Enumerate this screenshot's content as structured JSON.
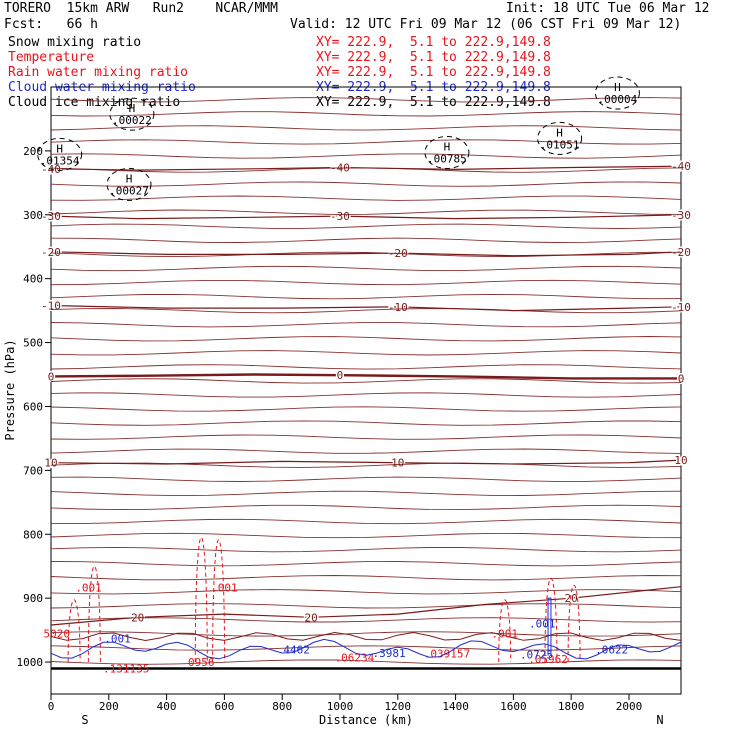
{
  "header": {
    "model": "TORERO  15km ARW   Run2    NCAR/MMM",
    "init": "Init: 18 UTC Tue 06 Mar 12",
    "fcst": "Fcst:   66 h",
    "valid": "Valid: 12 UTC Fri 09 Mar 12 (06 CST Fri 09 Mar 12)"
  },
  "fields": [
    {
      "name": "Snow mixing ratio",
      "xy": "XY= 222.9,  5.1 to 222.9,149.8",
      "color": "#000000"
    },
    {
      "name": "Temperature",
      "xy": "XY= 222.9,  5.1 to 222.9,149.8",
      "color": "#e8141c"
    },
    {
      "name": "Rain water mixing ratio",
      "xy": "XY= 222.9,  5.1 to 222.9,149.8",
      "color": "#e8141c"
    },
    {
      "name": "Cloud water mixing ratio",
      "xy": "XY= 222.9,  5.1 to 222.9,149.8",
      "color": "#1f2bd0"
    },
    {
      "name": "Cloud ice mixing ratio",
      "xy": "XY= 222.9,  5.1 to 222.9,149.8",
      "color": "#000000"
    }
  ],
  "chart_data": {
    "type": "line",
    "xlabel": "Distance (km)",
    "ylabel": "Pressure (hPa)",
    "xlim": [
      0,
      2180
    ],
    "ylim": [
      1050,
      100
    ],
    "x_ticks": [
      0,
      200,
      400,
      600,
      800,
      1000,
      1200,
      1400,
      1600,
      1800,
      2000
    ],
    "y_ticks": [
      200,
      300,
      400,
      500,
      600,
      700,
      800,
      900,
      1000
    ],
    "x_end_labels": {
      "left": "S",
      "right": "N"
    },
    "temperature_labels": [
      "-40",
      "-30",
      "-20",
      "-10",
      "0",
      "10",
      "20"
    ],
    "temperature_isotherms": [
      {
        "label": "-40",
        "points": [
          [
            0,
            228
          ],
          [
            300,
            230
          ],
          [
            700,
            228
          ],
          [
            1000,
            226
          ],
          [
            1400,
            229
          ],
          [
            1800,
            226
          ],
          [
            2180,
            224
          ]
        ]
      },
      {
        "label": "-30",
        "points": [
          [
            0,
            302
          ],
          [
            300,
            306
          ],
          [
            700,
            304
          ],
          [
            1000,
            302
          ],
          [
            1400,
            306
          ],
          [
            1800,
            304
          ],
          [
            2180,
            300
          ]
        ]
      },
      {
        "label": "-20",
        "points": [
          [
            0,
            358
          ],
          [
            400,
            362
          ],
          [
            800,
            362
          ],
          [
            1200,
            360
          ],
          [
            1600,
            364
          ],
          [
            2000,
            362
          ],
          [
            2180,
            358
          ]
        ]
      },
      {
        "label": "-10",
        "points": [
          [
            0,
            442
          ],
          [
            400,
            446
          ],
          [
            800,
            446
          ],
          [
            1200,
            444
          ],
          [
            1600,
            450
          ],
          [
            2000,
            446
          ],
          [
            2180,
            444
          ]
        ]
      },
      {
        "label": "0",
        "points": [
          [
            0,
            553
          ],
          [
            300,
            552
          ],
          [
            700,
            550
          ],
          [
            1000,
            551
          ],
          [
            1400,
            553
          ],
          [
            1800,
            556
          ],
          [
            2180,
            556
          ]
        ]
      },
      {
        "label": "10",
        "points": [
          [
            0,
            688
          ],
          [
            400,
            690
          ],
          [
            800,
            686
          ],
          [
            1200,
            688
          ],
          [
            1600,
            690
          ],
          [
            2000,
            688
          ],
          [
            2180,
            684
          ]
        ]
      },
      {
        "label": "20",
        "points": [
          [
            0,
            942
          ],
          [
            300,
            930
          ],
          [
            600,
            925
          ],
          [
            900,
            930
          ],
          [
            1200,
            925
          ],
          [
            1500,
            910
          ],
          [
            1800,
            900
          ],
          [
            2180,
            882
          ]
        ]
      }
    ],
    "snow_maxima": [
      {
        "x": 280,
        "p": 155,
        "value": ".00022"
      },
      {
        "x": 30,
        "p": 218,
        "value": ".01354"
      },
      {
        "x": 270,
        "p": 265,
        "value": ".00027"
      },
      {
        "x": 1370,
        "p": 215,
        "value": ".00785"
      },
      {
        "x": 1760,
        "p": 193,
        "value": ".01051"
      },
      {
        "x": 1960,
        "p": 122,
        "value": ".00004"
      }
    ],
    "rain_labels": [
      {
        "x": 130,
        "p": 883,
        "value": ".001"
      },
      {
        "x": 600,
        "p": 883,
        "value": ".001"
      },
      {
        "x": 1570,
        "p": 955,
        "value": ".001"
      },
      {
        "x": 20,
        "p": 955,
        "value": "5020"
      },
      {
        "x": 260,
        "p": 1010,
        "value": ".131135"
      },
      {
        "x": 520,
        "p": 1000,
        "value": "0956"
      },
      {
        "x": 1050,
        "p": 993,
        "value": ".06234"
      },
      {
        "x": 1370,
        "p": 987,
        "value": ".039157"
      },
      {
        "x": 1720,
        "p": 995,
        "value": ".05962"
      }
    ],
    "cloud_water_labels": [
      {
        "x": 230,
        "p": 963,
        "value": ".001"
      },
      {
        "x": 1700,
        "p": 940,
        "value": ".001"
      },
      {
        "x": 850,
        "p": 980,
        "value": "4462"
      },
      {
        "x": 1170,
        "p": 986,
        "value": ".3981"
      },
      {
        "x": 1680,
        "p": 988,
        "value": ".0725"
      },
      {
        "x": 1940,
        "p": 980,
        "value": ".0622"
      }
    ]
  }
}
